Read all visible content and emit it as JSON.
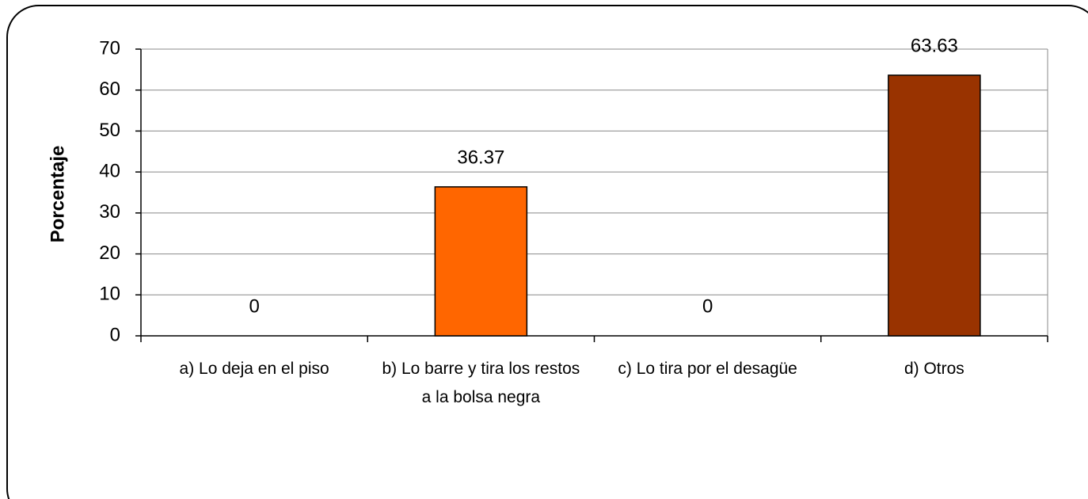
{
  "chart_data": {
    "type": "bar",
    "y_label": "Porcentaje",
    "categories": [
      "a) Lo deja en el piso",
      "b) Lo barre y tira los restos a la bolsa negra",
      "c) Lo tira por el desagüe",
      "d) Otros"
    ],
    "values": [
      0,
      36.37,
      0,
      63.63
    ],
    "colors": [
      "#ff6600",
      "#ff6600",
      "#ff6600",
      "#993300"
    ],
    "ylim": [
      0,
      70
    ],
    "yticks": [
      0,
      10,
      20,
      30,
      40,
      50,
      60,
      70
    ],
    "grid": true
  }
}
